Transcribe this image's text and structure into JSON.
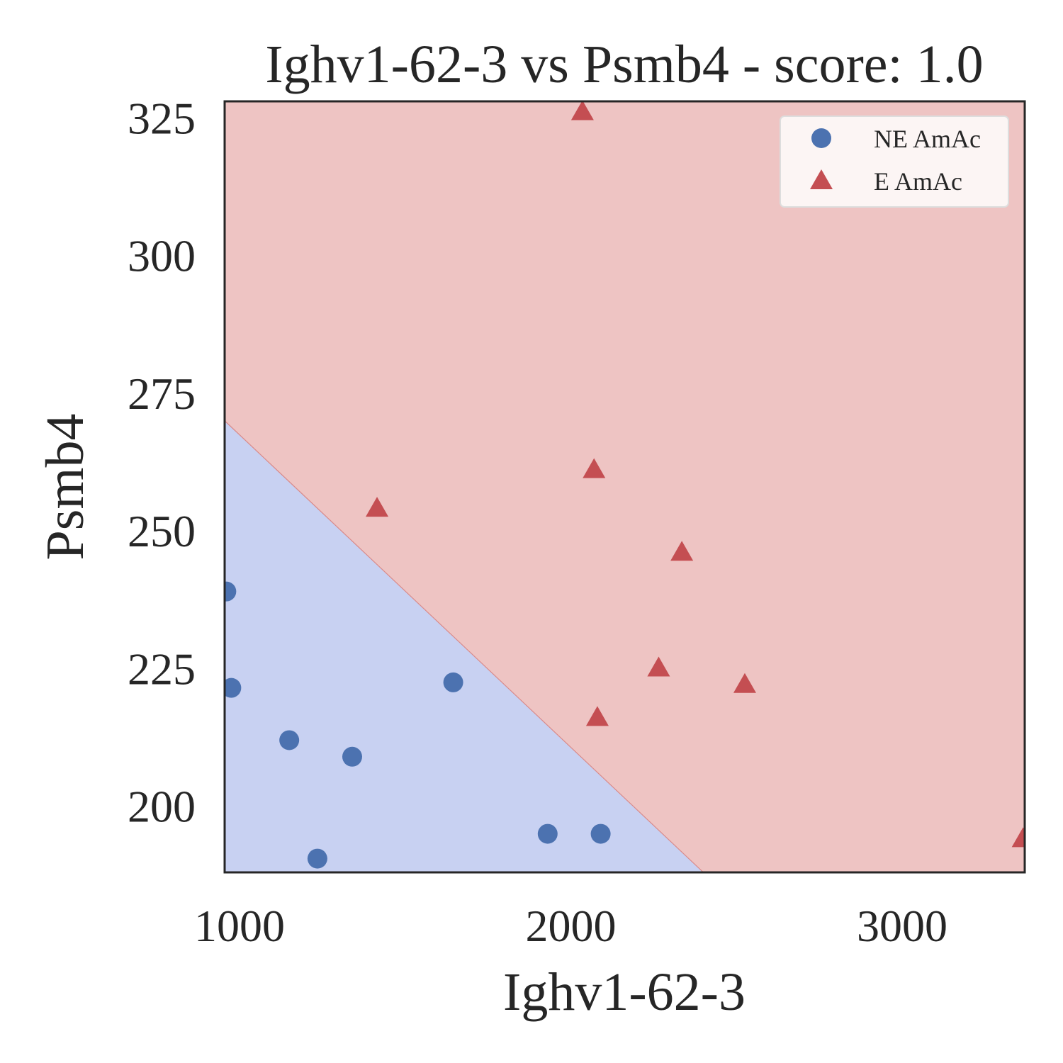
{
  "chart_data": {
    "type": "scatter",
    "title": "Ighv1-62-3 vs Psmb4 - score: 1.0",
    "xlabel": "Ighv1-62-3",
    "ylabel": "Psmb4",
    "xlim": [
      955,
      3370
    ],
    "ylim": [
      188,
      328
    ],
    "xticks": [
      1000,
      2000,
      3000
    ],
    "xtick_labels": [
      "1000",
      "2000",
      "3000"
    ],
    "yticks": [
      200,
      225,
      250,
      275,
      300,
      325
    ],
    "ytick_labels": [
      "200",
      "225",
      "250",
      "275",
      "300",
      "325"
    ],
    "grid": false,
    "legend_position": "top-right",
    "decision_boundary": {
      "points": [
        [
          955,
          270
        ],
        [
          2400,
          188
        ]
      ],
      "region_below_color": "#c8d1f2",
      "region_above_color": "#eec4c3"
    },
    "series": [
      {
        "name": "NE AmAc",
        "marker": "circle",
        "color": "#4c72b0",
        "points": [
          [
            960,
            239
          ],
          [
            975,
            221.5
          ],
          [
            1150,
            212
          ],
          [
            1340,
            209
          ],
          [
            1645,
            222.5
          ],
          [
            1930,
            195
          ],
          [
            2090,
            195
          ],
          [
            1235,
            190.5
          ]
        ]
      },
      {
        "name": "E AmAc",
        "marker": "triangle",
        "color": "#c44e52",
        "points": [
          [
            2035,
            326
          ],
          [
            2070,
            261
          ],
          [
            1415,
            254
          ],
          [
            2335,
            246
          ],
          [
            2265,
            225
          ],
          [
            2525,
            222
          ],
          [
            2080,
            216
          ],
          [
            3365,
            194
          ]
        ]
      }
    ]
  }
}
